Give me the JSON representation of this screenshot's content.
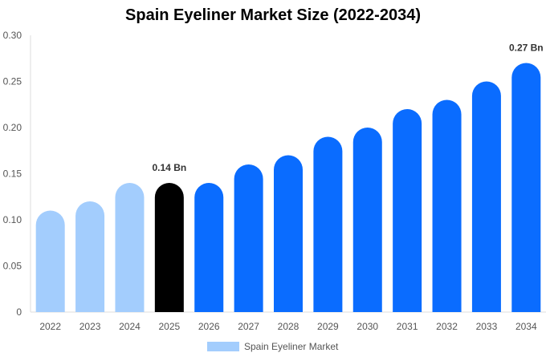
{
  "chart_data": {
    "type": "bar",
    "title": "Spain Eyeliner Market Size (2022-2034)",
    "categories": [
      "2022",
      "2023",
      "2024",
      "2025",
      "2026",
      "2027",
      "2028",
      "2029",
      "2030",
      "2031",
      "2032",
      "2033",
      "2034"
    ],
    "series": [
      {
        "name": "Spain Eyeliner Market",
        "values": [
          0.11,
          0.12,
          0.14,
          0.14,
          0.14,
          0.16,
          0.17,
          0.19,
          0.2,
          0.22,
          0.23,
          0.25,
          0.27
        ]
      }
    ],
    "y_ticks": [
      "0",
      "0.05",
      "0.10",
      "0.15",
      "0.20",
      "0.25",
      "0.30"
    ],
    "ylim": [
      0,
      0.3
    ],
    "data_labels": [
      {
        "category": "2025",
        "text": "0.14 Bn"
      },
      {
        "category": "2034",
        "text": "0.27 Bn"
      }
    ],
    "bar_colors": {
      "historical": "#a3cdfd",
      "base_year": "#000000",
      "forecast": "#0a6cff"
    },
    "base_year": "2025",
    "legend_position": "bottom-center",
    "grid": false
  }
}
